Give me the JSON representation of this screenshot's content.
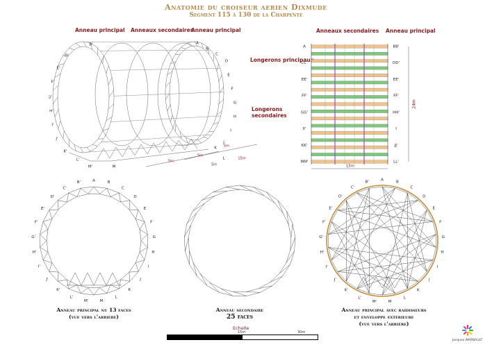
{
  "header": {
    "title": "Anatomie du croiseur aerien Dixmude",
    "subtitle": "Segment 115 à 130 de la Charpente"
  },
  "labels": {
    "anneau_principal": "Anneau principal",
    "anneaux_secondaires": "Anneaux secondaires",
    "longerons_principaux": "Longerons principaux",
    "longerons_secondaires": "Longerons secondaires"
  },
  "perspective": {
    "dims": [
      "5m",
      "5m",
      "5m",
      "5m",
      "15m"
    ]
  },
  "plan": {
    "left_letters": [
      "A",
      "CC'",
      "EE'",
      "FF'",
      "GG'",
      "II'",
      "KK'",
      "MM'"
    ],
    "right_letters": [
      "BB'",
      "DD'",
      "EE'",
      "FF'",
      "HH'",
      "I",
      "JJ'",
      "LL'"
    ],
    "height_dim": "24m",
    "width_dim": "15m"
  },
  "ring_letters": [
    "B'",
    "A",
    "B",
    "C",
    "D",
    "E",
    "F",
    "G",
    "H",
    "I",
    "J",
    "K",
    "L",
    "M",
    "M'",
    "L'",
    "K'",
    "J'",
    "I'",
    "H'",
    "G'",
    "F'",
    "E'",
    "D'",
    "C'"
  ],
  "captions": {
    "ring13_line1": "Anneau principal nu 13 faces",
    "ring13_line2": "(vue vers l'arrière)",
    "ring25_line1": "Anneau secondaire",
    "ring25_line2": "25 faces",
    "ring_env_line1": "Anneau principal avec raidisseurs",
    "ring_env_line2": "et enveloppe extérieure",
    "ring_env_line3": "(vue vers l'arrière)"
  },
  "scale": {
    "title": "Echelle",
    "mid": "15m",
    "end": "30m"
  },
  "logo": {
    "text": "Jacques WARNAULT"
  },
  "colors": {
    "title": "#b8884a",
    "annotation": "#8b1a1a",
    "ring_principal_band": "#f1c28a",
    "ring_secondary_band": "#7ec87e",
    "longeron_principal": "#a04ec0",
    "envelope": "#c98a3a"
  }
}
